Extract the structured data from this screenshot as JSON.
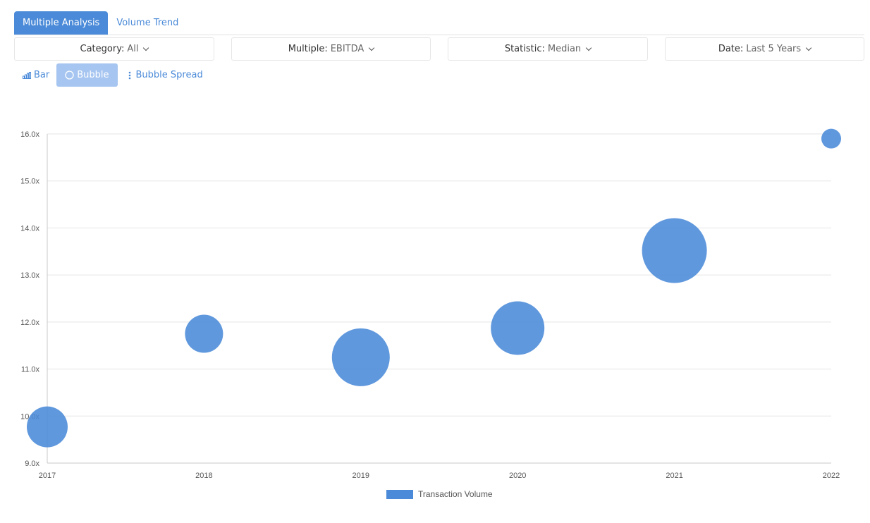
{
  "tabs": [
    {
      "label": "Multiple Analysis",
      "active": true
    },
    {
      "label": "Volume Trend",
      "active": false
    }
  ],
  "filters": [
    {
      "name": "category",
      "label": "Category:",
      "value": "All"
    },
    {
      "name": "multiple",
      "label": "Multiple:",
      "value": "EBITDA"
    },
    {
      "name": "statistic",
      "label": "Statistic:",
      "value": "Median"
    },
    {
      "name": "date",
      "label": "Date:",
      "value": "Last 5 Years"
    }
  ],
  "view_buttons": [
    {
      "label": "Bar",
      "icon": "bar-chart-icon",
      "active": false
    },
    {
      "label": "Bubble",
      "icon": "circle-icon",
      "active": true
    },
    {
      "label": "Bubble Spread",
      "icon": "vertical-dots-icon",
      "active": false
    }
  ],
  "colors": {
    "accent": "#4a8ad8",
    "bubble": "#4a8ad8",
    "active_button": "#a6c5f0"
  },
  "chart_data": {
    "type": "scatter",
    "x": [
      "2017",
      "2018",
      "2019",
      "2020",
      "2021",
      "2022"
    ],
    "y": [
      9.77,
      11.75,
      11.25,
      11.87,
      13.52,
      15.9
    ],
    "relative_volume": [
      29,
      27,
      41,
      38,
      46,
      14
    ],
    "y_ticks": [
      "9.0x",
      "10.0x",
      "11.0x",
      "12.0x",
      "13.0x",
      "14.0x",
      "15.0x",
      "16.0x"
    ],
    "ylim": [
      9,
      16
    ],
    "grid": true,
    "legend": {
      "label": "Transaction Volume",
      "position": "bottom"
    }
  }
}
